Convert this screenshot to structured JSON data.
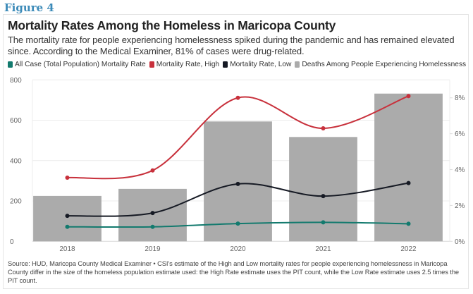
{
  "figure_label": "Figure 4",
  "header": {
    "title": "Mortality Rates Among the Homeless in Maricopa County",
    "subtitle": "The mortality rate for people experiencing homelessness spiked during the pandemic and has remained elevated since. According to the Medical Examiner, 81% of cases were drug-related."
  },
  "legend": [
    {
      "label": "All Case (Total Population) Mortality Rate",
      "color": "#137a6e"
    },
    {
      "label": "Mortality Rate, High",
      "color": "#c8313c"
    },
    {
      "label": "Mortality Rate, Low",
      "color": "#161a24"
    },
    {
      "label": "Deaths Among People Experiencing Homelessness",
      "color": "#ababab"
    }
  ],
  "source": "Source: HUD, Maricopa County Medical Examiner • CSI's estimate of the High and Low mortality rates for people experiencing homelessness in Maricopa County differ in the size of the homeless population estimate used: the High Rate estimate uses the PIT count, while the Low Rate estimate uses 2.5 times the PIT count.",
  "chart_data": {
    "type": "bar",
    "title": "Mortality Rates Among the Homeless in Maricopa County",
    "categories": [
      "2018",
      "2019",
      "2020",
      "2021",
      "2022"
    ],
    "xlabel": "",
    "ylabel": "",
    "ylim": [
      0,
      800
    ],
    "y_ticks": [
      0,
      200,
      400,
      600,
      800
    ],
    "y_tick_labels": [
      "0",
      "200",
      "400",
      "600",
      "800"
    ],
    "y2lim": [
      0,
      9
    ],
    "y2_ticks": [
      0,
      2,
      4,
      6,
      8
    ],
    "y2_tick_labels": [
      "0%",
      "2%",
      "4%",
      "6%",
      "8%"
    ],
    "grid": true,
    "legend_position": "top-left",
    "bar_series": {
      "name": "Deaths Among People Experiencing Homelessness",
      "axis": "left",
      "color": "#ababab",
      "values": [
        225,
        260,
        594,
        517,
        732
      ]
    },
    "line_series": [
      {
        "name": "All Case (Total Population) Mortality Rate",
        "axis": "right",
        "unit": "%",
        "color": "#137a6e",
        "values": [
          0.81,
          0.81,
          0.99,
          1.06,
          0.98
        ]
      },
      {
        "name": "Mortality Rate, High",
        "axis": "right",
        "unit": "%",
        "color": "#c8313c",
        "values": [
          3.55,
          3.95,
          8.0,
          6.3,
          8.1
        ]
      },
      {
        "name": "Mortality Rate, Low",
        "axis": "right",
        "unit": "%",
        "color": "#161a24",
        "values": [
          1.42,
          1.58,
          3.2,
          2.52,
          3.25
        ]
      }
    ]
  }
}
